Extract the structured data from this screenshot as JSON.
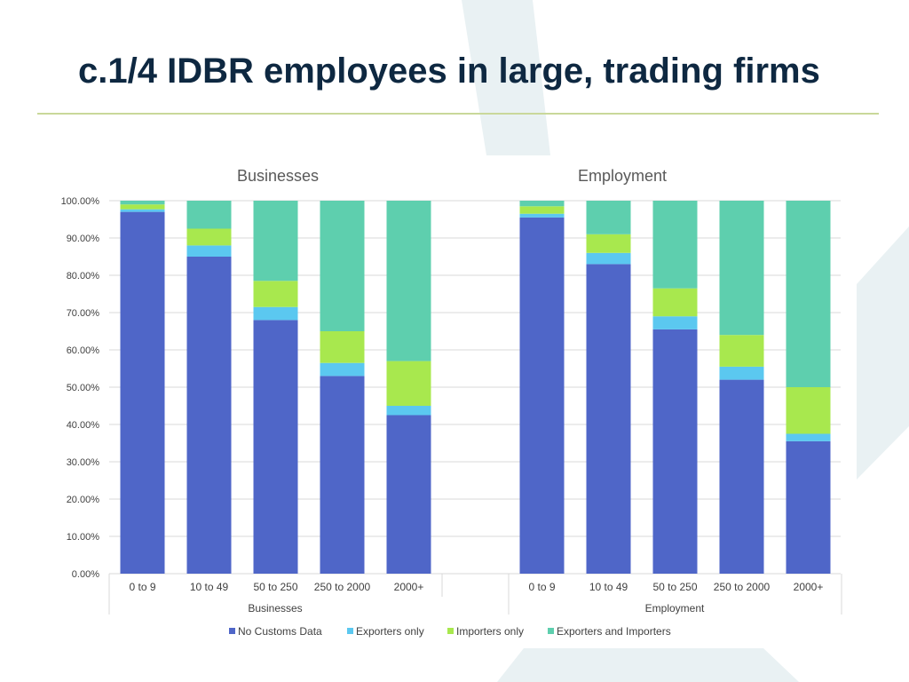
{
  "slide": {
    "title": "c.1/4 IDBR employees in large, trading firms"
  },
  "colors": {
    "no_customs": "#4f66c8",
    "exporters_only": "#5bc8f0",
    "importers_only": "#a8e84e",
    "both": "#5ecfae",
    "grid": "#d9d9d9",
    "axis_text": "#404040",
    "title_text": "#0e2841",
    "rule": "#c9d89a"
  },
  "chart_data": {
    "type": "bar",
    "stacked": true,
    "panel_titles": [
      "Businesses",
      "Employment"
    ],
    "groups": [
      "Businesses",
      "Employment"
    ],
    "categories": [
      "0 to 9",
      "10 to 49",
      "50 to 250",
      "250 to 2000",
      "2000+"
    ],
    "ylim": [
      0,
      100
    ],
    "yticks": [
      "0.00%",
      "10.00%",
      "20.00%",
      "30.00%",
      "40.00%",
      "50.00%",
      "60.00%",
      "70.00%",
      "80.00%",
      "90.00%",
      "100.00%"
    ],
    "grid": true,
    "legend_position": "bottom",
    "series": [
      {
        "name": "No Customs Data",
        "color_key": "no_customs",
        "values": {
          "Businesses": [
            97,
            85,
            68,
            53,
            42.5
          ],
          "Employment": [
            95.5,
            83,
            65.5,
            52,
            35.5
          ]
        }
      },
      {
        "name": "Exporters only",
        "color_key": "exporters_only",
        "values": {
          "Businesses": [
            0.7,
            3,
            3.5,
            3.5,
            2.5
          ],
          "Employment": [
            1,
            3,
            3.5,
            3.5,
            2
          ]
        }
      },
      {
        "name": "Importers only",
        "color_key": "importers_only",
        "values": {
          "Businesses": [
            1.3,
            4.5,
            7,
            8.5,
            12
          ],
          "Employment": [
            2,
            5,
            7.5,
            8.5,
            12.5
          ]
        }
      },
      {
        "name": "Exporters and Importers",
        "color_key": "both",
        "values": {
          "Businesses": [
            1,
            7.5,
            21.5,
            35,
            43
          ],
          "Employment": [
            1.5,
            9,
            23.5,
            36,
            50
          ]
        }
      }
    ]
  }
}
